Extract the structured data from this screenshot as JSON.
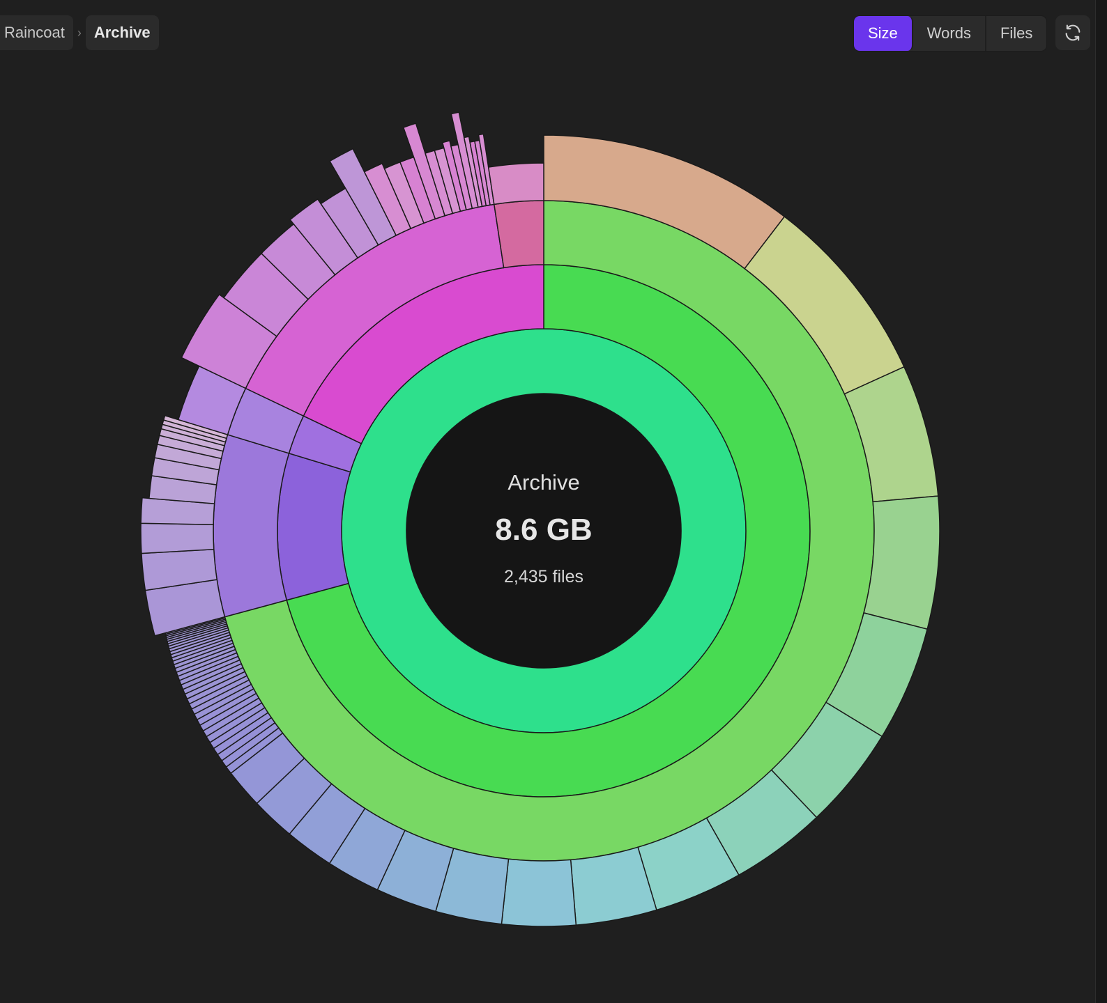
{
  "breadcrumb": {
    "items": [
      {
        "label": "Raincoat"
      },
      {
        "label": "Archive"
      }
    ],
    "separator": "›"
  },
  "view_toggle": {
    "options": [
      "Size",
      "Words",
      "Files"
    ],
    "active": "Size",
    "active_color": "#6a35ec"
  },
  "refresh": {
    "icon": "refresh-icon"
  },
  "center": {
    "title": "Archive",
    "size": "8.6 GB",
    "files": "2,435 files"
  },
  "chart_data": {
    "type": "sunburst",
    "colors": {
      "root_ring": "#2ee08c",
      "green_depth2": "#48db52",
      "green_depth3": "#78d864",
      "magenta_depth2": "#d94bd0",
      "magenta_depth3": "#d663d3",
      "purple_depth2": "#8c62db",
      "purple_depth3": "#9c78db",
      "pink_leaf": "#d46aa0"
    },
    "rings": [
      {
        "depth": 1,
        "segments": [
          {
            "share": 1.0,
            "color": "#2ee08c"
          }
        ]
      },
      {
        "depth": 2,
        "segments": [
          {
            "share": 0.708,
            "color": "#48db52"
          },
          {
            "share": 0.089,
            "color": "#8c62db"
          },
          {
            "share": 0.024,
            "color": "#a070e0"
          },
          {
            "share": 0.179,
            "color": "#d94bd0"
          }
        ]
      },
      {
        "depth": 3,
        "segments": [
          {
            "share": 0.708,
            "color": "#78d864"
          },
          {
            "share": 0.089,
            "color": "#9c78db"
          },
          {
            "share": 0.024,
            "color": "#a883df"
          },
          {
            "share": 0.155,
            "color": "#d663d3"
          },
          {
            "share": 0.024,
            "color": "#d46aa0"
          }
        ]
      }
    ],
    "outer_ring": {
      "rainbow_leaves": [
        0.104,
        0.078,
        0.054,
        0.054,
        0.047,
        0.042,
        0.039,
        0.036,
        0.033,
        0.03,
        0.027,
        0.025,
        0.022,
        0.02,
        0.018,
        0.016
      ],
      "tail_leaf_count": 34,
      "purple_leaves": [
        0.02,
        0.016,
        0.013,
        0.011,
        0.01,
        0.008,
        0.006,
        0.004,
        0.003,
        0.002,
        0.002,
        0.002
      ],
      "magenta_leaves": [
        0.03,
        0.024,
        0.018,
        0.014,
        0.012,
        0.01,
        0.008,
        0.007,
        0.006,
        0.005,
        0.004,
        0.004,
        0.003,
        0.003,
        0.003,
        0.002,
        0.002,
        0.002,
        0.002
      ]
    }
  }
}
